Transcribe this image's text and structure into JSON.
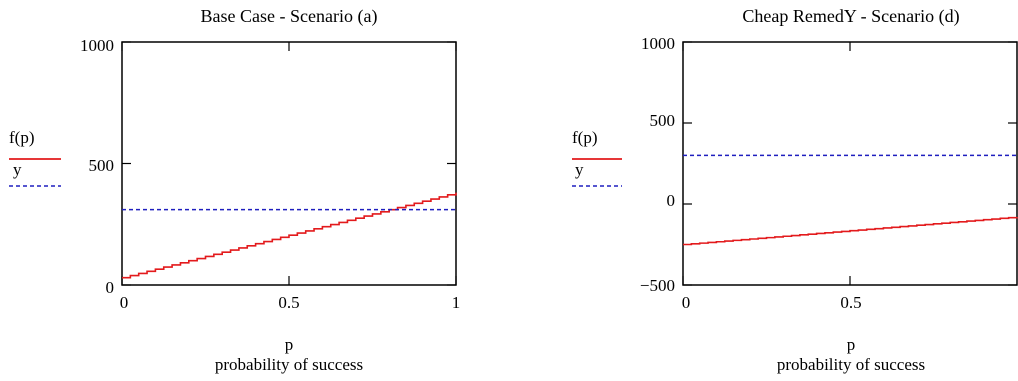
{
  "chart_data": [
    {
      "type": "line",
      "title": "Base Case - Scenario (a)",
      "xlabel": "p",
      "xlabel_sub": "probability of success",
      "xlim": [
        0,
        1
      ],
      "ylim": [
        0,
        1000
      ],
      "x_ticks": [
        0,
        0.5,
        1
      ],
      "x_tick_labels": [
        "0",
        "0.5",
        "1"
      ],
      "y_ticks": [
        0,
        500,
        1000
      ],
      "y_tick_labels": [
        "0",
        "500",
        "1000"
      ],
      "grid": false,
      "legend_position": "left",
      "series": [
        {
          "name": "f(p)",
          "color": "#e31a1c",
          "style": "solid",
          "x": [
            0,
            1
          ],
          "y": [
            30,
            380
          ]
        },
        {
          "name": "y",
          "color": "#1f1fbf",
          "style": "dashed",
          "x": [
            0,
            1
          ],
          "y": [
            310,
            310
          ]
        }
      ]
    },
    {
      "type": "line",
      "title": "Cheap RemedY - Scenario (d)",
      "xlabel": "p",
      "xlabel_sub": "probability of success",
      "xlim": [
        0,
        1
      ],
      "ylim": [
        -500,
        1000
      ],
      "x_ticks": [
        0,
        0.5
      ],
      "x_tick_labels": [
        "0",
        "0.5"
      ],
      "y_ticks": [
        -500,
        0,
        500,
        1000
      ],
      "y_tick_labels": [
        "−500",
        "0",
        "500",
        "1000"
      ],
      "grid": false,
      "legend_position": "left",
      "series": [
        {
          "name": "f(p)",
          "color": "#e31a1c",
          "style": "solid",
          "x": [
            0,
            1
          ],
          "y": [
            -250,
            -80
          ]
        },
        {
          "name": "y",
          "color": "#1f1fbf",
          "style": "dashed",
          "x": [
            0,
            1
          ],
          "y": [
            300,
            300
          ]
        }
      ]
    }
  ]
}
